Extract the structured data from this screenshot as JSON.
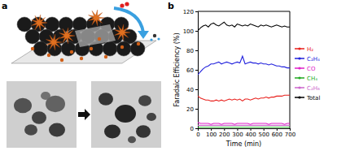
{
  "illustration": {
    "label": "a"
  },
  "chart_data": {
    "type": "line",
    "title": "b",
    "xlabel": "Time (min)",
    "ylabel": "Faradaic Efficiency (%)",
    "x": [
      0,
      20,
      40,
      60,
      80,
      100,
      120,
      140,
      160,
      180,
      200,
      220,
      240,
      260,
      280,
      300,
      320,
      340,
      360,
      380,
      400,
      420,
      440,
      460,
      480,
      500,
      520,
      540,
      560,
      580,
      600,
      620,
      640,
      660,
      680,
      700
    ],
    "series": [
      {
        "name": "H₂",
        "color": "#e8201c",
        "values": [
          33,
          31,
          30,
          29,
          29,
          28,
          28,
          29,
          28,
          29,
          28,
          29,
          30,
          29,
          30,
          29,
          30,
          28,
          30,
          30,
          29,
          30,
          31,
          30,
          31,
          31,
          32,
          31,
          32,
          32,
          33,
          33,
          33,
          34,
          34,
          34
        ]
      },
      {
        "name": "C₂H₄",
        "color": "#2222dd",
        "values": [
          55,
          58,
          61,
          63,
          64,
          66,
          66,
          67,
          68,
          66,
          67,
          68,
          67,
          66,
          67,
          68,
          67,
          74,
          66,
          67,
          68,
          67,
          67,
          66,
          67,
          66,
          66,
          65,
          66,
          65,
          64,
          64,
          63,
          63,
          62,
          62
        ]
      },
      {
        "name": "CO",
        "color": "#e020c8",
        "values": [
          6,
          5,
          5,
          5,
          5,
          4,
          5,
          5,
          5,
          4,
          5,
          5,
          5,
          5,
          4,
          5,
          5,
          5,
          5,
          5,
          4,
          5,
          5,
          5,
          5,
          5,
          5,
          4,
          5,
          5,
          5,
          5,
          5,
          4,
          5,
          5
        ]
      },
      {
        "name": "CH₄",
        "color": "#22aa22",
        "values": [
          1,
          1,
          1,
          1,
          1,
          1,
          1,
          1,
          1,
          1,
          1,
          1,
          1,
          1,
          1,
          1,
          1,
          1,
          1,
          1,
          1,
          1,
          1,
          1,
          1,
          1,
          1,
          1,
          1,
          1,
          1,
          1,
          1,
          1,
          1,
          1
        ]
      },
      {
        "name": "C₂H₆",
        "color": "#cc66cc",
        "values": [
          3,
          3,
          3,
          3,
          3,
          3,
          3,
          3,
          3,
          3,
          3,
          3,
          3,
          3,
          3,
          3,
          3,
          3,
          3,
          3,
          3,
          3,
          3,
          3,
          3,
          3,
          3,
          3,
          3,
          3,
          3,
          3,
          3,
          3,
          3,
          3
        ]
      },
      {
        "name": "Total",
        "color": "#000000",
        "values": [
          100,
          103,
          105,
          106,
          104,
          107,
          108,
          106,
          105,
          107,
          109,
          106,
          105,
          106,
          104,
          107,
          106,
          105,
          106,
          105,
          107,
          106,
          105,
          104,
          106,
          105,
          106,
          105,
          104,
          105,
          106,
          105,
          104,
          105,
          104,
          104
        ]
      }
    ],
    "xlim": [
      0,
      700
    ],
    "xticks": [
      0,
      100,
      200,
      300,
      400,
      500,
      600,
      700
    ],
    "ylim": [
      0,
      120
    ],
    "yticks": [
      0,
      20,
      40,
      60,
      80,
      100,
      120
    ],
    "grid": false,
    "legend": "right"
  }
}
